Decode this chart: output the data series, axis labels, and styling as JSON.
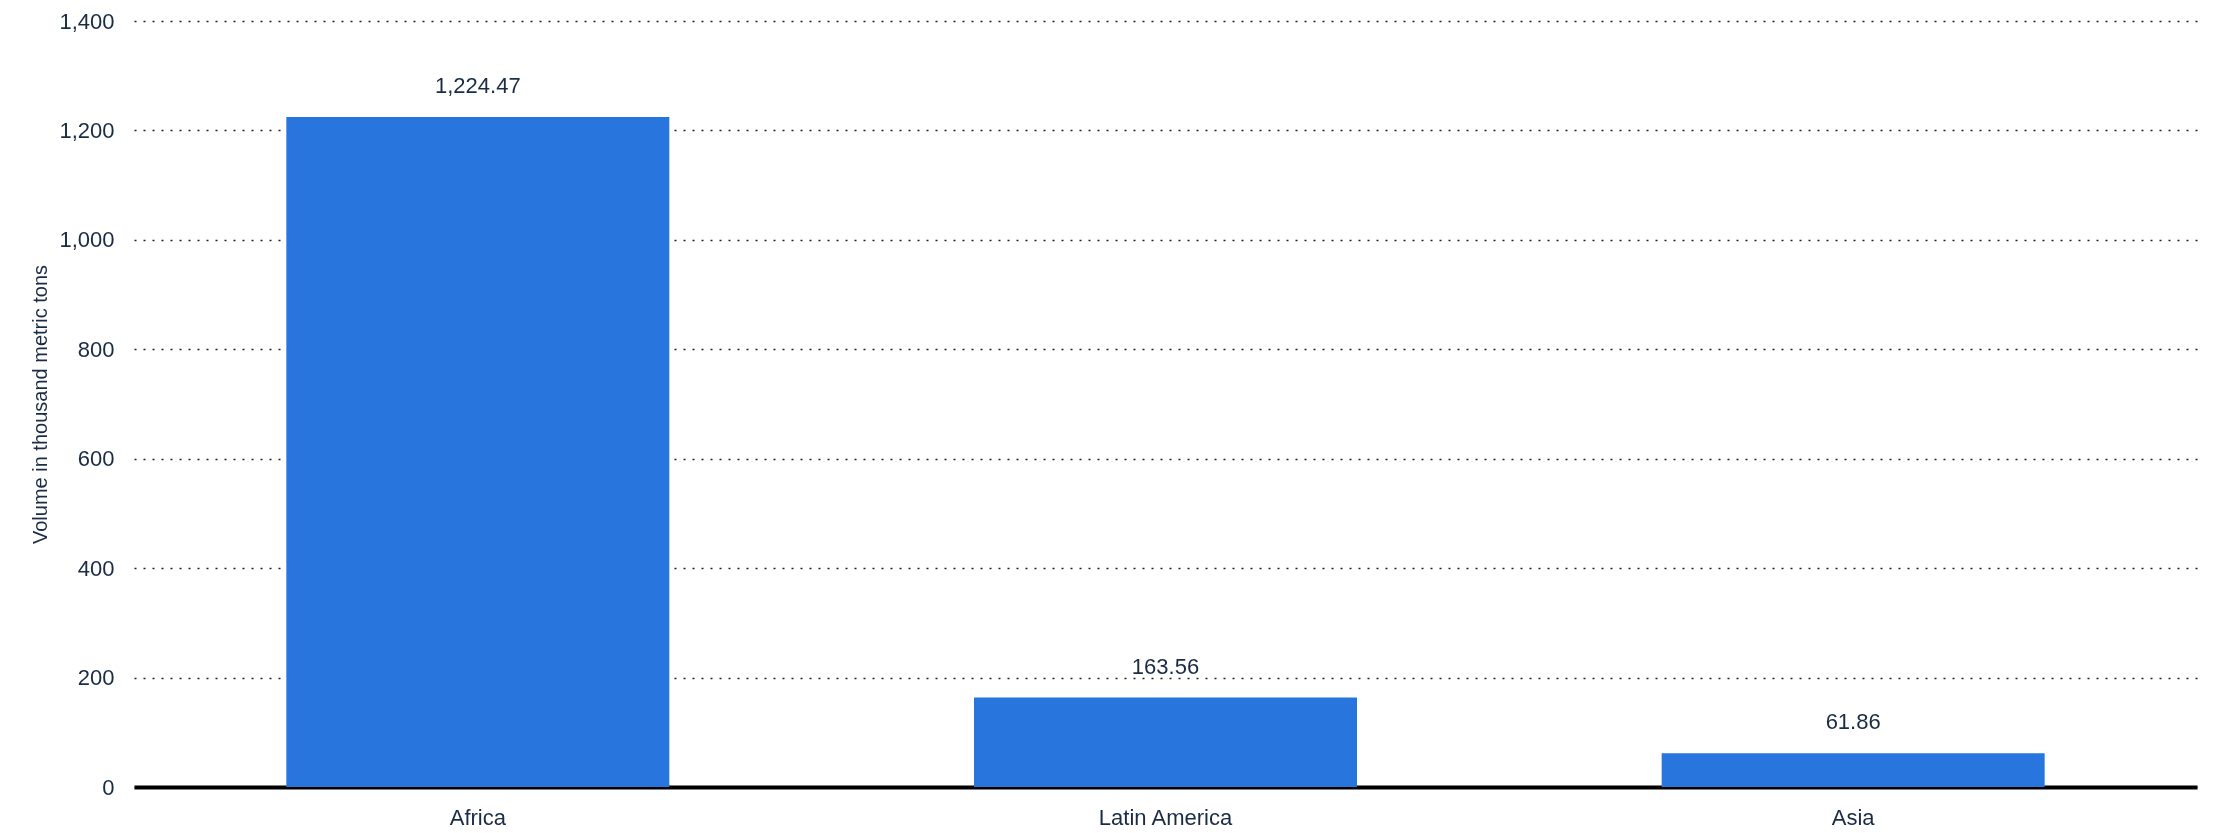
{
  "chart_data": {
    "type": "bar",
    "ylabel": "Volume in thousand metric tons",
    "categories": [
      "Africa",
      "Latin America",
      "Asia"
    ],
    "values": [
      1224.47,
      163.56,
      61.86
    ],
    "color": "#2876dd",
    "value_labels": [
      "1,224.47",
      "163.56",
      "61.86"
    ],
    "ylim": [
      0,
      1400
    ],
    "yticks": [
      0,
      200,
      400,
      600,
      800,
      {
        "value": 1000,
        "label": "1,000"
      },
      {
        "value": 1200,
        "label": "1,200"
      },
      {
        "value": 1400,
        "label": "1,400"
      }
    ],
    "grid": "y"
  }
}
